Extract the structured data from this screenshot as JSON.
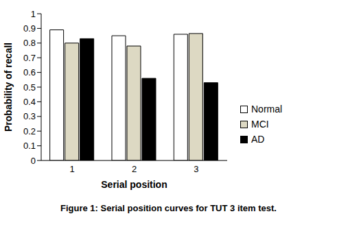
{
  "chart_data": {
    "type": "bar",
    "title": "Figure 1: Serial position curves for TUT 3 item test.",
    "x_label": "Serial position",
    "y_label": "Probability of recall",
    "categories": [
      "1",
      "2",
      "3"
    ],
    "series": [
      {
        "name": "Normal",
        "color": "#ffffff",
        "values": [
          0.89,
          0.85,
          0.86
        ]
      },
      {
        "name": "MCI",
        "color": "#ddd9c3",
        "values": [
          0.8,
          0.78,
          0.865
        ]
      },
      {
        "name": "AD",
        "color": "#000000",
        "values": [
          0.83,
          0.56,
          0.53
        ]
      }
    ],
    "ylim": [
      0,
      1
    ],
    "yticks": [
      0,
      0.1,
      0.2,
      0.3,
      0.4,
      0.5,
      0.6,
      0.7,
      0.8,
      0.9,
      1
    ],
    "grid": false,
    "legend": "right"
  }
}
